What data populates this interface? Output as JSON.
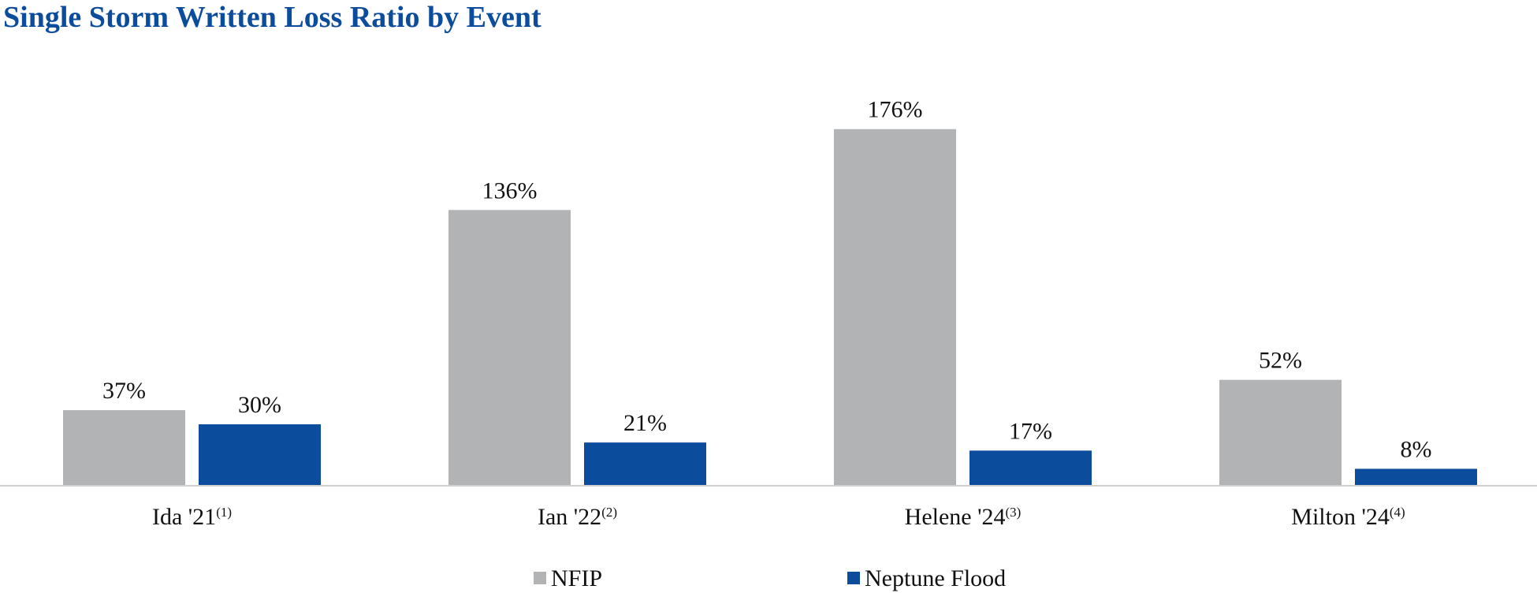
{
  "title": "Single Storm Written Loss Ratio by Event",
  "colors": {
    "title": "#0b4d9c",
    "nfip": "#b2b3b5",
    "neptune": "#0b4d9c",
    "axis": "#d0d0d0"
  },
  "chart_data": {
    "type": "bar",
    "title": "Single Storm Written Loss Ratio by Event",
    "xlabel": "",
    "ylabel": "",
    "ylim": [
      0,
      200
    ],
    "grid": false,
    "legend_position": "bottom",
    "categories": [
      {
        "label": "Ida '21",
        "footnote": "(1)"
      },
      {
        "label": "Ian '22",
        "footnote": "(2)"
      },
      {
        "label": "Helene '24",
        "footnote": "(3)"
      },
      {
        "label": "Milton '24",
        "footnote": "(4)"
      }
    ],
    "series": [
      {
        "name": "NFIP",
        "color": "#b2b3b5",
        "values": [
          37,
          136,
          176,
          52
        ],
        "labels": [
          "37%",
          "136%",
          "176%",
          "52%"
        ]
      },
      {
        "name": "Neptune Flood",
        "color": "#0b4d9c",
        "values": [
          30,
          21,
          17,
          8
        ],
        "labels": [
          "30%",
          "21%",
          "17%",
          "8%"
        ]
      }
    ]
  }
}
